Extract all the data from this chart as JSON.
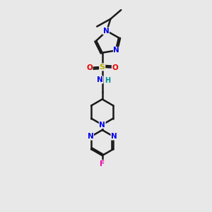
{
  "background_color": "#e8e8e8",
  "bond_color": "#1a1a1a",
  "colors": {
    "N": "#0000ee",
    "O": "#ee0000",
    "S": "#bbaa00",
    "F": "#ee00aa",
    "H": "#009090",
    "C": "#1a1a1a"
  },
  "lw": 1.8,
  "xlim": [
    0,
    10
  ],
  "ylim": [
    0,
    14
  ]
}
